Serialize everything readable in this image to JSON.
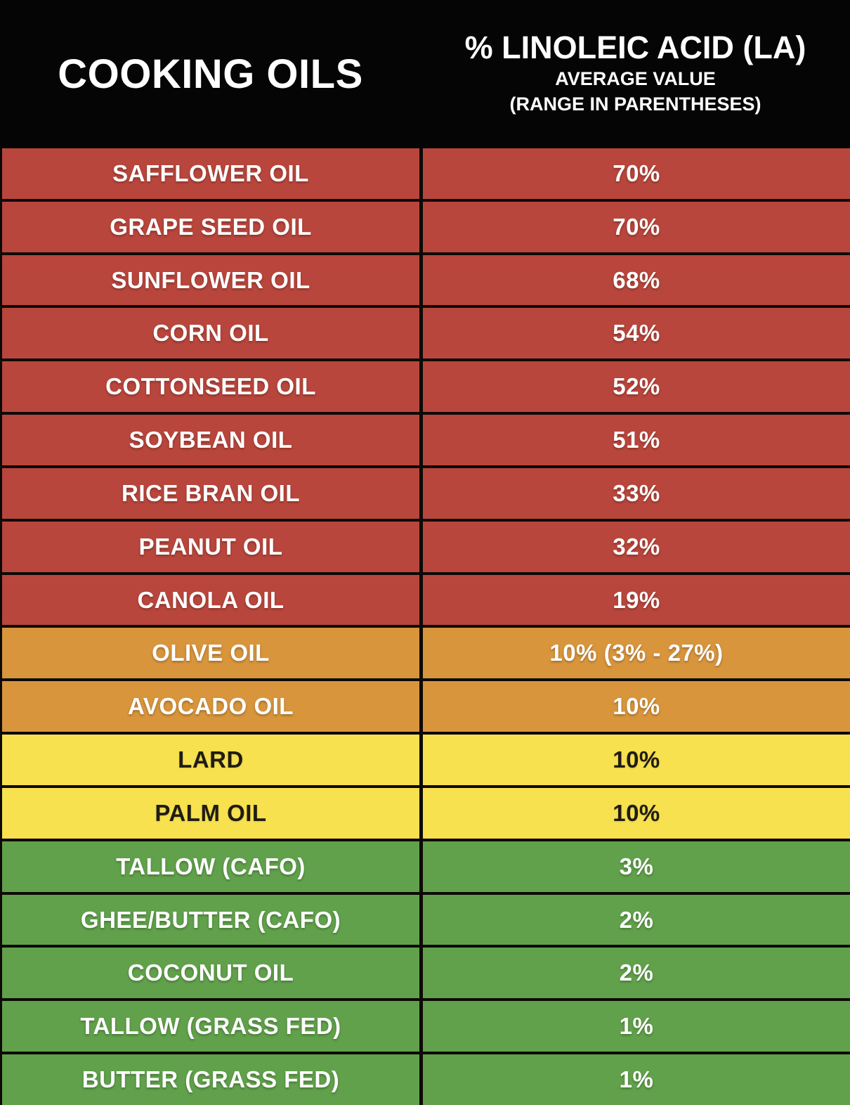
{
  "header": {
    "left_title": "COOKING OILS",
    "right_title": "% LINOLEIC ACID (LA)",
    "right_subtitle1": "AVERAGE VALUE",
    "right_subtitle2": "(RANGE IN PARENTHESES)"
  },
  "colors": {
    "background": "#050505",
    "grid": "#0d0a06",
    "red": "#b9463c",
    "orange": "#d8953c",
    "yellow": "#f7e14f",
    "green": "#61a14b",
    "light_text": "#ffffff",
    "dark_text": "#201c12"
  },
  "chart_data": {
    "type": "table",
    "title": "Cooking Oils — % Linoleic Acid (LA), average value (range in parentheses)",
    "columns": [
      "COOKING OILS",
      "% LINOLEIC ACID (LA)"
    ],
    "rows": [
      {
        "label": "SAFFLOWER OIL",
        "value": "70%",
        "average_percent": 70,
        "color": "red"
      },
      {
        "label": "GRAPE SEED OIL",
        "value": "70%",
        "average_percent": 70,
        "color": "red"
      },
      {
        "label": "SUNFLOWER OIL",
        "value": "68%",
        "average_percent": 68,
        "color": "red"
      },
      {
        "label": "CORN OIL",
        "value": "54%",
        "average_percent": 54,
        "color": "red"
      },
      {
        "label": "COTTONSEED OIL",
        "value": "52%",
        "average_percent": 52,
        "color": "red"
      },
      {
        "label": "SOYBEAN OIL",
        "value": "51%",
        "average_percent": 51,
        "color": "red"
      },
      {
        "label": "RICE BRAN OIL",
        "value": "33%",
        "average_percent": 33,
        "color": "red"
      },
      {
        "label": "PEANUT OIL",
        "value": "32%",
        "average_percent": 32,
        "color": "red"
      },
      {
        "label": "CANOLA OIL",
        "value": "19%",
        "average_percent": 19,
        "color": "red"
      },
      {
        "label": "OLIVE OIL",
        "value": "10% (3% - 27%)",
        "average_percent": 10,
        "range_percent": [
          3,
          27
        ],
        "color": "orange"
      },
      {
        "label": "AVOCADO OIL",
        "value": "10%",
        "average_percent": 10,
        "color": "orange"
      },
      {
        "label": "LARD",
        "value": "10%",
        "average_percent": 10,
        "color": "yellow"
      },
      {
        "label": "PALM OIL",
        "value": "10%",
        "average_percent": 10,
        "color": "yellow"
      },
      {
        "label": "TALLOW (CAFO)",
        "value": "3%",
        "average_percent": 3,
        "color": "green"
      },
      {
        "label": "GHEE/BUTTER (CAFO)",
        "value": "2%",
        "average_percent": 2,
        "color": "green"
      },
      {
        "label": "COCONUT OIL",
        "value": "2%",
        "average_percent": 2,
        "color": "green"
      },
      {
        "label": "TALLOW (GRASS FED)",
        "value": "1%",
        "average_percent": 1,
        "color": "green"
      },
      {
        "label": "BUTTER (GRASS FED)",
        "value": "1%",
        "average_percent": 1,
        "color": "green"
      }
    ]
  }
}
